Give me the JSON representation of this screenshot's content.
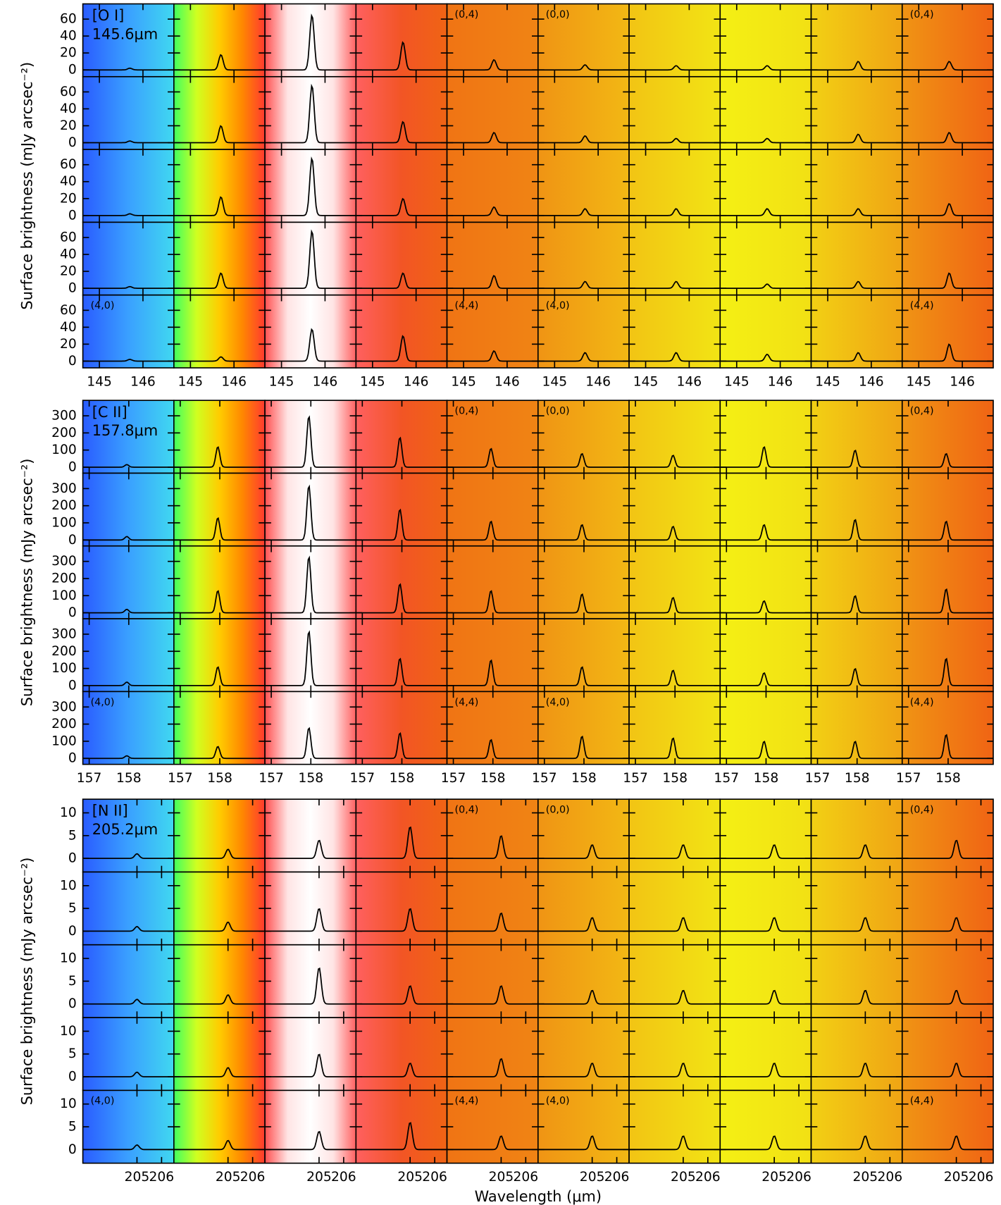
{
  "chart_data": [
    {
      "type": "line",
      "title": "[O I]",
      "subtitle": "145.6μm",
      "y_label": "Surface brightness (mJy arcsec⁻²)",
      "xlim": [
        144.62,
        146.71
      ],
      "xticks": [
        145,
        146
      ],
      "ylim": [
        -8,
        78
      ],
      "yticks": [
        0,
        20,
        40,
        60
      ],
      "line_center": 145.7,
      "color": "#000000",
      "peaks": [
        [
          2,
          18,
          65,
          33,
          12,
          6,
          5,
          5,
          10,
          10
        ],
        [
          2,
          20,
          68,
          25,
          12,
          8,
          5,
          5,
          10,
          12
        ],
        [
          2,
          22,
          68,
          20,
          10,
          8,
          8,
          8,
          8,
          14
        ],
        [
          2,
          18,
          68,
          18,
          15,
          8,
          8,
          5,
          8,
          18
        ],
        [
          2,
          5,
          38,
          30,
          12,
          10,
          10,
          8,
          10,
          20
        ]
      ],
      "cell_labels": [
        [
          null,
          null,
          null,
          null,
          "(0,4)",
          "(0,0)",
          null,
          null,
          null,
          "(0,4)"
        ],
        [
          "(4,0)",
          null,
          null,
          null,
          "(4,4)",
          "(4,0)",
          null,
          null,
          null,
          "(4,4)"
        ]
      ]
    },
    {
      "type": "line",
      "title": "[C II]",
      "subtitle": "157.8μm",
      "y_label": "Surface brightness (mJy arcsec⁻²)",
      "xlim": [
        156.84,
        159.14
      ],
      "xticks": [
        157,
        158
      ],
      "ylim": [
        -35,
        390
      ],
      "yticks": [
        0,
        100,
        200,
        300
      ],
      "line_center": 157.95,
      "color": "#000000",
      "peaks": [
        [
          15,
          120,
          300,
          175,
          110,
          80,
          70,
          120,
          100,
          80
        ],
        [
          20,
          130,
          320,
          180,
          110,
          90,
          80,
          90,
          120,
          110
        ],
        [
          20,
          130,
          330,
          170,
          130,
          110,
          90,
          70,
          100,
          140
        ],
        [
          20,
          110,
          320,
          160,
          150,
          110,
          90,
          75,
          100,
          160
        ],
        [
          15,
          70,
          180,
          150,
          110,
          130,
          120,
          100,
          100,
          140
        ]
      ],
      "cell_labels": [
        [
          null,
          null,
          null,
          null,
          "(0,4)",
          "(0,0)",
          null,
          null,
          null,
          "(0,4)"
        ],
        [
          "(4,0)",
          null,
          null,
          null,
          "(4,4)",
          "(4,0)",
          null,
          null,
          null,
          "(4,4)"
        ]
      ]
    },
    {
      "type": "line",
      "title": "[N II]",
      "subtitle": "205.2μm",
      "y_label": "Surface brightness (mJy arcsec⁻²)",
      "x_label": "Wavelength (μm)",
      "xlim": [
        202.8,
        206.5
      ],
      "xticks": [
        205,
        206
      ],
      "ylim": [
        -3,
        13
      ],
      "yticks": [
        0,
        5,
        10
      ],
      "line_center": 205.0,
      "color": "#000000",
      "peaks": [
        [
          1,
          2,
          4,
          7,
          5,
          3,
          3,
          3,
          3,
          4
        ],
        [
          1,
          2,
          5,
          5,
          4,
          3,
          3,
          3,
          3,
          3
        ],
        [
          1,
          2,
          8,
          4,
          4,
          3,
          3,
          3,
          3,
          3
        ],
        [
          1,
          2,
          5,
          3,
          4,
          3,
          3,
          3,
          3,
          3
        ],
        [
          1,
          2,
          4,
          6,
          3,
          3,
          3,
          3,
          3,
          3
        ]
      ],
      "cell_labels": [
        [
          null,
          null,
          null,
          null,
          "(0,4)",
          "(0,0)",
          null,
          null,
          null,
          "(0,4)"
        ],
        [
          "(4,0)",
          null,
          null,
          null,
          "(4,4)",
          "(4,0)",
          null,
          null,
          null,
          "(4,4)"
        ]
      ]
    }
  ]
}
